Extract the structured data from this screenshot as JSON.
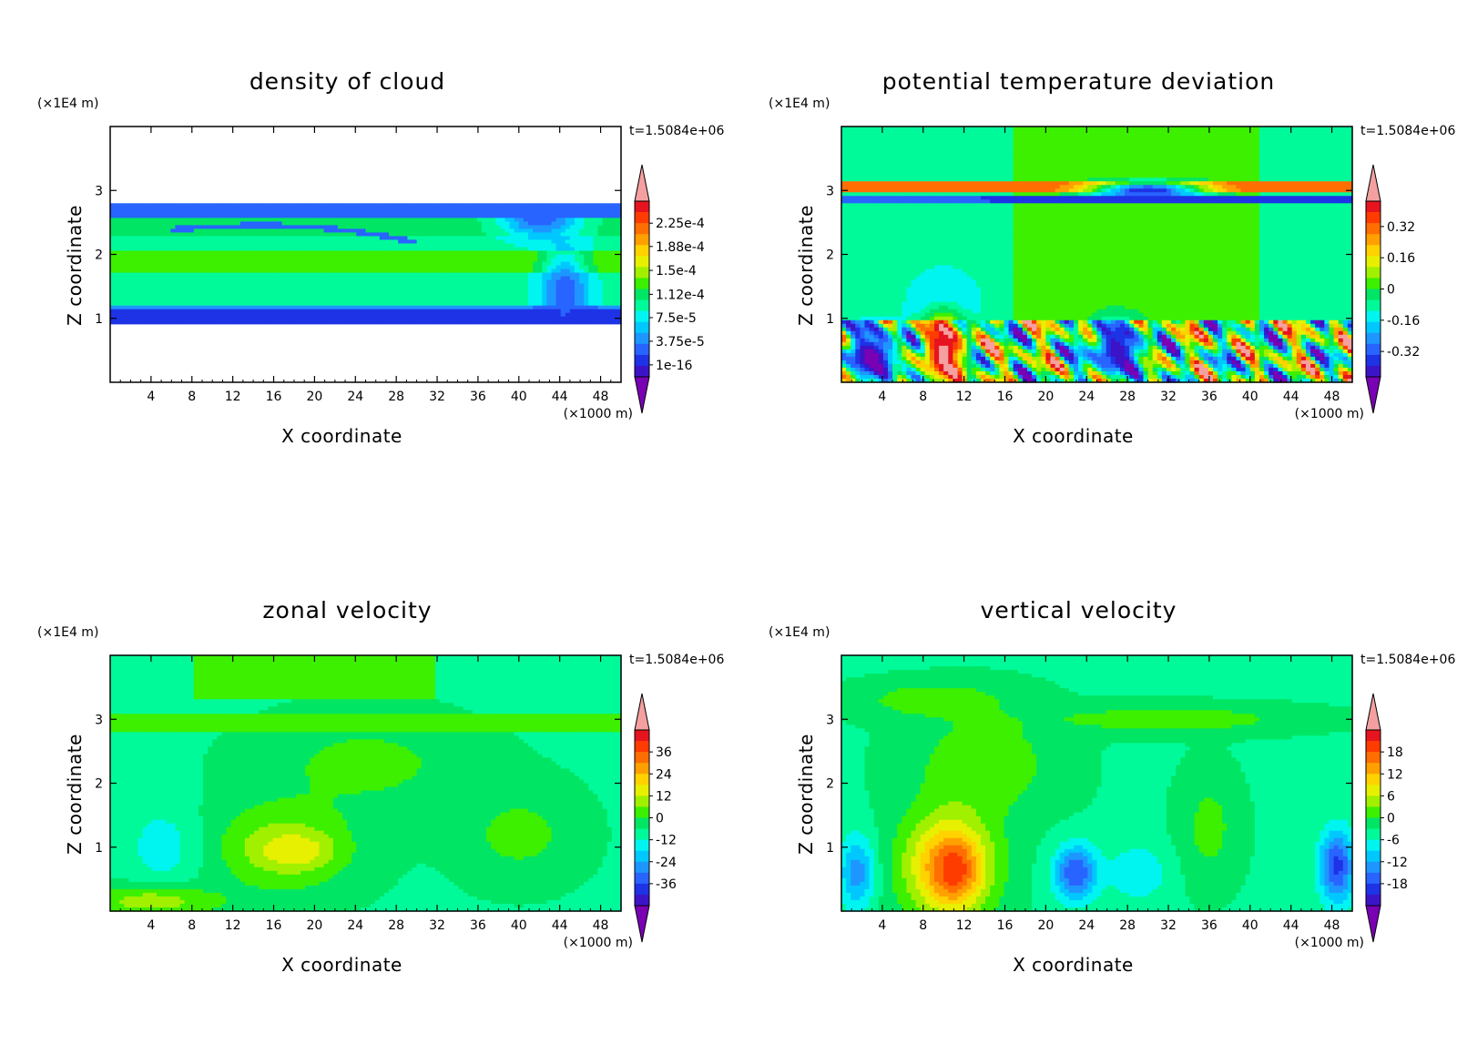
{
  "figure": {
    "panels": [
      "density",
      "theta",
      "u",
      "w"
    ]
  },
  "chart_data": [
    {
      "id": "density",
      "type": "heatmap",
      "title": "density of cloud",
      "xlabel": "X coordinate",
      "ylabel": "Z coordinate",
      "x_unit": "(×1000 m)",
      "y_unit": "(×1E4 m)",
      "time_label": "t=1.5084e+06",
      "xlim": [
        0,
        50
      ],
      "ylim": [
        0,
        4
      ],
      "x_ticks": [
        4,
        8,
        12,
        16,
        20,
        24,
        28,
        32,
        36,
        40,
        44,
        48
      ],
      "x_tick_labels": [
        "4",
        "8",
        "12",
        "16",
        "20",
        "24",
        "28",
        "32",
        "36",
        "40",
        "44",
        "48"
      ],
      "y_ticks": [
        1,
        2,
        3
      ],
      "y_tick_labels": [
        "1",
        "2",
        "3"
      ],
      "colorbar": {
        "labels": [
          "2.25e-4",
          "1.88e-4",
          "1.5e-4",
          "1.12e-4",
          "7.5e-5",
          "3.75e-5",
          "1e-16"
        ],
        "label_levels": [
          0.000225,
          0.000188,
          0.00015,
          0.000112,
          7.5e-05,
          3.75e-05,
          1e-16
        ],
        "range": [
          -1.9e-05,
          0.00026
        ]
      },
      "features": [
        {
          "kind": "band",
          "y0": 0.93,
          "y1": 2.78,
          "value": 9.5e-05
        },
        {
          "kind": "band",
          "y0": 1.7,
          "y1": 2.05,
          "value": 0.000132
        },
        {
          "kind": "band",
          "y0": 2.28,
          "y1": 2.55,
          "value": 0.00011
        },
        {
          "kind": "band",
          "y0": 2.6,
          "y1": 2.78,
          "value": 4e-05
        },
        {
          "kind": "band",
          "y0": 0.93,
          "y1": 1.12,
          "value": 1.5e-05
        },
        {
          "kind": "band",
          "y0": 1.12,
          "y1": 1.22,
          "value": 4.5e-05
        },
        {
          "kind": "blob",
          "x": 44.5,
          "y": 1.35,
          "sx": 1.6,
          "sy": 0.5,
          "value": 3e-05
        },
        {
          "kind": "blob",
          "x": 42,
          "y": 2.55,
          "sx": 2.5,
          "sy": 0.2,
          "value": 3e-05
        }
      ]
    },
    {
      "id": "theta",
      "type": "heatmap",
      "title": "potential temperature deviation",
      "xlabel": "X coordinate",
      "ylabel": "Z coordinate",
      "x_unit": "(×1000 m)",
      "y_unit": "(×1E4 m)",
      "time_label": "t=1.5084e+06",
      "xlim": [
        0,
        50
      ],
      "ylim": [
        0,
        4
      ],
      "x_ticks": [
        4,
        8,
        12,
        16,
        20,
        24,
        28,
        32,
        36,
        40,
        44,
        48
      ],
      "x_tick_labels": [
        "4",
        "8",
        "12",
        "16",
        "20",
        "24",
        "28",
        "32",
        "36",
        "40",
        "44",
        "48"
      ],
      "y_ticks": [
        1,
        2,
        3
      ],
      "y_tick_labels": [
        "1",
        "2",
        "3"
      ],
      "colorbar": {
        "labels": [
          "0.32",
          "0.16",
          "0",
          "-0.16",
          "-0.32"
        ],
        "label_levels": [
          0.32,
          0.16,
          0,
          -0.16,
          -0.32
        ],
        "range": [
          -0.45,
          0.45
        ]
      },
      "features": [
        {
          "kind": "background",
          "value": -0.06
        },
        {
          "kind": "region",
          "x0": 17,
          "x1": 41,
          "y0": 1.0,
          "y1": 4.0,
          "value": 0.03
        },
        {
          "kind": "band",
          "y0": 3.0,
          "y1": 3.12,
          "value": 0.3
        },
        {
          "kind": "band",
          "y0": 2.82,
          "y1": 2.92,
          "value": -0.3
        },
        {
          "kind": "blob",
          "x": 30,
          "y": 3.0,
          "sx": 4,
          "sy": 0.1,
          "value": -0.35
        },
        {
          "kind": "blob",
          "x": 10,
          "y": 1.2,
          "sx": 2.5,
          "sy": 0.4,
          "value": -0.2
        },
        {
          "kind": "turbulent",
          "y0": 0.0,
          "y1": 0.95,
          "amplitude": 0.38
        },
        {
          "kind": "blob",
          "x": 10,
          "y": 0.5,
          "sx": 1.5,
          "sy": 0.4,
          "value": 0.42
        },
        {
          "kind": "blob",
          "x": 3,
          "y": 0.4,
          "sx": 2,
          "sy": 0.3,
          "value": -0.42
        },
        {
          "kind": "blob",
          "x": 27,
          "y": 0.5,
          "sx": 2,
          "sy": 0.3,
          "value": -0.38
        }
      ]
    },
    {
      "id": "u",
      "type": "heatmap",
      "title": "zonal velocity",
      "xlabel": "X coordinate",
      "ylabel": "Z coordinate",
      "x_unit": "(×1000 m)",
      "y_unit": "(×1E4 m)",
      "time_label": "t=1.5084e+06",
      "xlim": [
        0,
        50
      ],
      "ylim": [
        0,
        4
      ],
      "x_ticks": [
        4,
        8,
        12,
        16,
        20,
        24,
        28,
        32,
        36,
        40,
        44,
        48
      ],
      "x_tick_labels": [
        "4",
        "8",
        "12",
        "16",
        "20",
        "24",
        "28",
        "32",
        "36",
        "40",
        "44",
        "48"
      ],
      "y_ticks": [
        1,
        2,
        3
      ],
      "y_tick_labels": [
        "1",
        "2",
        "3"
      ],
      "colorbar": {
        "labels": [
          "36",
          "24",
          "12",
          "0",
          "-12",
          "-24",
          "-36"
        ],
        "label_levels": [
          36,
          24,
          12,
          0,
          -12,
          -24,
          -36
        ],
        "range": [
          -48,
          48
        ]
      },
      "features": [
        {
          "kind": "background",
          "value": -6
        },
        {
          "kind": "region",
          "x0": 8,
          "x1": 32,
          "y0": 3.3,
          "y1": 4.0,
          "value": 2
        },
        {
          "kind": "band",
          "y0": 2.8,
          "y1": 3.1,
          "value": 2
        },
        {
          "kind": "blob",
          "x": 25,
          "y": 2.3,
          "sx": 7,
          "sy": 0.5,
          "value": 2
        },
        {
          "kind": "blob",
          "x": 17,
          "y": 1.0,
          "sx": 5,
          "sy": 0.5,
          "value": 8
        },
        {
          "kind": "blob",
          "x": 18,
          "y": 0.95,
          "sx": 2.2,
          "sy": 0.18,
          "value": 16
        },
        {
          "kind": "blob",
          "x": 40,
          "y": 1.2,
          "sx": 4,
          "sy": 0.5,
          "value": 2
        },
        {
          "kind": "blob",
          "x": 5,
          "y": 1.0,
          "sx": 2.5,
          "sy": 0.5,
          "value": -13
        },
        {
          "kind": "blob",
          "x": 4,
          "y": 0.15,
          "sx": 5,
          "sy": 0.18,
          "value": 8
        }
      ]
    },
    {
      "id": "w",
      "type": "heatmap",
      "title": "vertical velocity",
      "xlabel": "X coordinate",
      "ylabel": "Z coordinate",
      "x_unit": "(×1000 m)",
      "y_unit": "(×1E4 m)",
      "time_label": "t=1.5084e+06",
      "xlim": [
        0,
        50
      ],
      "ylim": [
        0,
        4
      ],
      "x_ticks": [
        4,
        8,
        12,
        16,
        20,
        24,
        28,
        32,
        36,
        40,
        44,
        48
      ],
      "x_tick_labels": [
        "4",
        "8",
        "12",
        "16",
        "20",
        "24",
        "28",
        "32",
        "36",
        "40",
        "44",
        "48"
      ],
      "y_ticks": [
        1,
        2,
        3
      ],
      "y_tick_labels": [
        "1",
        "2",
        "3"
      ],
      "colorbar": {
        "labels": [
          "18",
          "12",
          "6",
          "0",
          "-6",
          "-12",
          "-18"
        ],
        "label_levels": [
          18,
          12,
          6,
          0,
          -6,
          -12,
          -18
        ],
        "range": [
          -24,
          24
        ]
      },
      "features": [
        {
          "kind": "background",
          "value": -3
        },
        {
          "kind": "blob",
          "x": 9,
          "y": 3.3,
          "sx": 5,
          "sy": 0.2,
          "value": 2
        },
        {
          "kind": "blob",
          "x": 32,
          "y": 3.0,
          "sx": 9,
          "sy": 0.15,
          "value": 2
        },
        {
          "kind": "blob",
          "x": 14,
          "y": 2.3,
          "sx": 5,
          "sy": 0.6,
          "value": 2
        },
        {
          "kind": "blob",
          "x": 10.5,
          "y": 0.7,
          "sx": 3.2,
          "sy": 0.6,
          "value": 12
        },
        {
          "kind": "blob",
          "x": 11,
          "y": 0.65,
          "sx": 1.4,
          "sy": 0.3,
          "value": 18
        },
        {
          "kind": "blob",
          "x": 23,
          "y": 0.6,
          "sx": 1.5,
          "sy": 0.3,
          "value": -16
        },
        {
          "kind": "blob",
          "x": 48.5,
          "y": 0.7,
          "sx": 1.2,
          "sy": 0.4,
          "value": -17
        },
        {
          "kind": "blob",
          "x": 1.5,
          "y": 0.6,
          "sx": 1.2,
          "sy": 0.4,
          "value": -12
        },
        {
          "kind": "blob",
          "x": 36,
          "y": 1.3,
          "sx": 2,
          "sy": 0.6,
          "value": 1
        },
        {
          "kind": "blob",
          "x": 29,
          "y": 0.6,
          "sx": 2,
          "sy": 0.3,
          "value": -8
        }
      ]
    }
  ]
}
